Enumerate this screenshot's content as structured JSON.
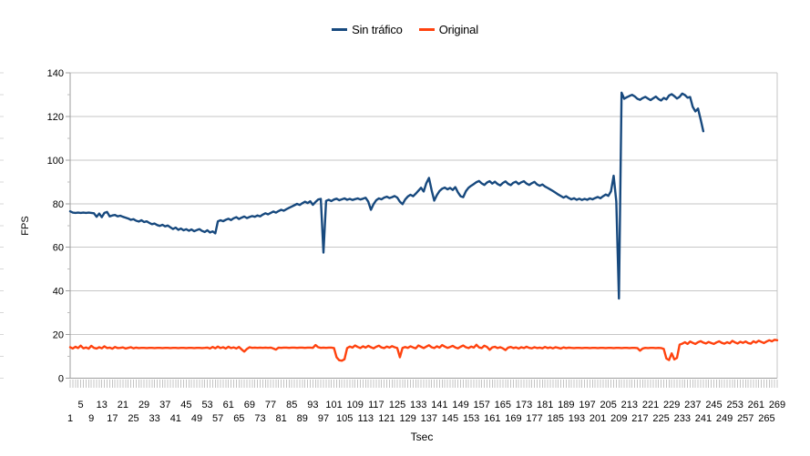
{
  "chart_data": {
    "type": "line",
    "title": "",
    "xlabel": "Tsec",
    "ylabel": "FPS",
    "x_range": [
      1,
      269
    ],
    "ylim": [
      0,
      140
    ],
    "y_major_ticks": [
      0,
      20,
      40,
      60,
      80,
      100,
      120,
      140
    ],
    "y_minor_interval": 10,
    "grid": "horizontal",
    "legend_position": "top-center",
    "x_tick_minor_step": 1,
    "x_tick_labels_row1": [
      5,
      13,
      21,
      29,
      37,
      45,
      53,
      61,
      69,
      77,
      85,
      93,
      101,
      109,
      117,
      125,
      133,
      141,
      149,
      157,
      165,
      173,
      181,
      189,
      197,
      205,
      213,
      221,
      229,
      237,
      245,
      253,
      261,
      269
    ],
    "x_tick_labels_row2": [
      1,
      9,
      17,
      25,
      33,
      41,
      49,
      57,
      65,
      73,
      81,
      89,
      97,
      105,
      113,
      121,
      129,
      137,
      145,
      153,
      161,
      169,
      177,
      185,
      193,
      201,
      209,
      217,
      225,
      233,
      241,
      249,
      257,
      265
    ],
    "series": [
      {
        "name": "Sin tráfico",
        "color": "#17497e",
        "x_start": 1,
        "values": [
          76.5,
          75.9,
          75.8,
          75.9,
          75.8,
          75.9,
          75.8,
          75.9,
          75.8,
          75.6,
          74.0,
          75.5,
          73.8,
          75.8,
          76.2,
          74.2,
          74.6,
          74.8,
          74.2,
          74.5,
          74.0,
          73.6,
          73.2,
          72.6,
          72.9,
          72.2,
          71.8,
          72.4,
          71.6,
          71.9,
          71.2,
          70.6,
          70.9,
          70.2,
          69.8,
          70.3,
          69.6,
          70.0,
          69.2,
          68.4,
          69.0,
          68.0,
          68.6,
          67.8,
          68.3,
          67.6,
          68.2,
          67.4,
          67.9,
          68.3,
          67.5,
          67.0,
          67.8,
          66.8,
          67.3,
          66.4,
          71.9,
          72.4,
          72.0,
          72.6,
          73.1,
          72.5,
          73.3,
          73.8,
          73.0,
          73.6,
          74.1,
          73.4,
          73.9,
          74.3,
          74.0,
          74.6,
          74.2,
          75.0,
          75.6,
          75.1,
          75.8,
          76.4,
          75.9,
          76.6,
          77.2,
          76.8,
          77.5,
          78.1,
          78.7,
          79.3,
          79.9,
          79.4,
          80.2,
          80.9,
          80.3,
          81.1,
          79.5,
          80.8,
          81.9,
          82.2,
          57.6,
          81.3,
          81.8,
          81.2,
          81.9,
          82.3,
          81.6,
          82.0,
          82.4,
          81.8,
          82.2,
          81.7,
          82.1,
          82.4,
          81.9,
          82.3,
          82.7,
          80.9,
          77.2,
          79.8,
          81.6,
          82.4,
          82.0,
          82.8,
          83.2,
          82.6,
          83.0,
          83.5,
          82.8,
          80.9,
          79.8,
          81.9,
          83.3,
          84.1,
          83.4,
          84.6,
          85.9,
          87.3,
          85.6,
          89.4,
          91.8,
          86.2,
          81.4,
          83.9,
          85.8,
          86.9,
          87.4,
          86.6,
          87.2,
          86.3,
          87.6,
          85.2,
          83.4,
          83.0,
          85.7,
          87.3,
          88.2,
          89.0,
          89.9,
          90.4,
          89.3,
          88.6,
          89.7,
          90.3,
          89.2,
          90.1,
          89.0,
          88.4,
          89.5,
          90.2,
          89.1,
          88.5,
          89.6,
          90.1,
          89.0,
          89.8,
          90.3,
          89.2,
          88.6,
          89.4,
          90.0,
          88.8,
          88.2,
          88.8,
          87.9,
          87.2,
          86.5,
          85.8,
          85.0,
          84.2,
          83.5,
          82.8,
          83.4,
          82.6,
          82.0,
          82.5,
          81.8,
          82.3,
          81.7,
          82.2,
          81.8,
          82.4,
          82.0,
          82.6,
          83.1,
          82.5,
          83.4,
          84.2,
          83.6,
          85.7,
          92.8,
          81.0,
          36.5,
          130.9,
          128.1,
          128.8,
          129.4,
          129.9,
          129.2,
          128.1,
          127.6,
          128.4,
          129.0,
          128.2,
          127.5,
          128.3,
          129.1,
          128.0,
          127.3,
          128.5,
          127.8,
          129.6,
          130.2,
          129.3,
          128.2,
          129.0,
          130.5,
          129.8,
          128.6,
          128.9,
          124.4,
          122.3,
          123.6,
          118.6,
          113.2
        ]
      },
      {
        "name": "Original",
        "color": "#ff420e",
        "x_start": 1,
        "values": [
          14.2,
          13.6,
          14.4,
          13.8,
          14.9,
          13.7,
          14.1,
          13.5,
          14.8,
          13.9,
          13.6,
          14.2,
          13.7,
          14.6,
          13.8,
          14.0,
          13.5,
          14.3,
          13.8,
          13.9,
          14.1,
          13.6,
          13.9,
          14.2,
          13.7,
          14.0,
          13.8,
          13.9,
          13.9,
          13.8,
          13.9,
          13.9,
          13.8,
          13.9,
          13.9,
          13.8,
          13.9,
          13.9,
          13.8,
          13.9,
          13.9,
          13.8,
          13.9,
          13.9,
          13.8,
          13.9,
          13.9,
          13.8,
          13.9,
          13.9,
          13.8,
          13.9,
          14.0,
          13.6,
          14.3,
          13.7,
          14.5,
          13.8,
          14.2,
          13.6,
          14.4,
          13.8,
          14.1,
          13.6,
          14.3,
          13.2,
          12.2,
          13.4,
          14.2,
          13.9,
          14.0,
          13.9,
          14.0,
          13.9,
          14.0,
          13.9,
          14.0,
          13.6,
          13.1,
          14.0,
          13.9,
          14.0,
          14.0,
          13.9,
          14.0,
          14.0,
          13.9,
          14.0,
          14.0,
          13.9,
          14.0,
          14.0,
          13.9,
          15.2,
          14.2,
          13.9,
          14.0,
          13.9,
          14.0,
          14.0,
          13.8,
          9.6,
          8.2,
          8.0,
          8.7,
          13.8,
          14.5,
          14.0,
          15.0,
          14.3,
          13.8,
          14.6,
          14.0,
          14.8,
          14.2,
          13.7,
          14.4,
          14.9,
          14.1,
          13.8,
          14.5,
          14.0,
          14.7,
          14.2,
          13.8,
          9.6,
          13.9,
          14.3,
          13.9,
          14.6,
          14.1,
          13.7,
          15.0,
          14.4,
          13.8,
          14.5,
          15.1,
          14.2,
          13.8,
          14.6,
          14.0,
          15.2,
          14.5,
          13.9,
          14.3,
          14.8,
          14.1,
          13.7,
          14.4,
          15.0,
          14.2,
          13.8,
          14.5,
          14.0,
          15.3,
          14.1,
          13.8,
          14.9,
          14.3,
          13.0,
          14.1,
          14.4,
          13.8,
          14.2,
          13.7,
          12.9,
          14.0,
          14.3,
          13.8,
          14.1,
          13.6,
          14.2,
          13.8,
          14.4,
          13.9,
          13.7,
          14.2,
          13.8,
          14.0,
          13.7,
          14.3,
          13.8,
          14.1,
          13.7,
          14.2,
          13.9,
          13.6,
          14.1,
          13.8,
          14.0,
          13.9,
          13.8,
          13.9,
          13.9,
          13.8,
          13.9,
          13.9,
          13.8,
          13.9,
          13.9,
          13.8,
          13.9,
          13.9,
          13.8,
          13.9,
          13.9,
          13.8,
          13.9,
          13.9,
          13.8,
          13.9,
          13.9,
          13.8,
          13.9,
          13.9,
          13.8,
          12.6,
          13.6,
          13.9,
          13.8,
          13.9,
          13.9,
          13.8,
          13.9,
          13.8,
          13.4,
          9.0,
          8.3,
          11.4,
          8.6,
          9.3,
          15.4,
          15.8,
          16.5,
          15.7,
          16.8,
          16.2,
          15.7,
          16.5,
          17.0,
          16.3,
          15.9,
          16.6,
          16.1,
          15.7,
          16.4,
          16.9,
          16.2,
          15.8,
          16.5,
          16.0,
          17.1,
          16.4,
          15.9,
          16.7,
          16.2,
          16.8,
          16.1,
          15.8,
          16.9,
          16.3,
          17.2,
          16.6,
          16.1,
          16.8,
          17.4,
          16.9,
          17.6,
          17.4
        ]
      }
    ],
    "colors": {
      "gridline": "#c6c6c6",
      "axis": "#9e9e9e",
      "minor_tick": "#bdbdbd",
      "edge_tick": "#d8d8d8",
      "comb_tick": "#c4c4c4",
      "background": "#ffffff"
    }
  }
}
